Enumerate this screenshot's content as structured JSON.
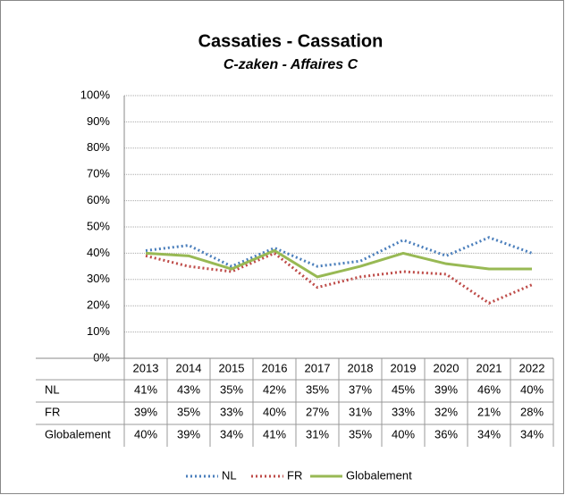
{
  "chart_data": {
    "type": "line",
    "title": "Cassaties - Cassation",
    "subtitle": "C-zaken - Affaires C",
    "categories": [
      "2013",
      "2014",
      "2015",
      "2016",
      "2017",
      "2018",
      "2019",
      "2020",
      "2021",
      "2022"
    ],
    "series": [
      {
        "name": "NL",
        "color": "#4a7ebb",
        "style": "dotted",
        "values": [
          41,
          43,
          35,
          42,
          35,
          37,
          45,
          39,
          46,
          40
        ],
        "value_labels": [
          "41%",
          "43%",
          "35%",
          "42%",
          "35%",
          "37%",
          "45%",
          "39%",
          "46%",
          "40%"
        ]
      },
      {
        "name": "FR",
        "color": "#be4b48",
        "style": "dotted",
        "values": [
          39,
          35,
          33,
          40,
          27,
          31,
          33,
          32,
          21,
          28
        ],
        "value_labels": [
          "39%",
          "35%",
          "33%",
          "40%",
          "27%",
          "31%",
          "33%",
          "32%",
          "21%",
          "28%"
        ]
      },
      {
        "name": "Globalement",
        "color": "#98b954",
        "style": "solid",
        "values": [
          40,
          39,
          34,
          41,
          31,
          35,
          40,
          36,
          34,
          34
        ],
        "value_labels": [
          "40%",
          "39%",
          "34%",
          "41%",
          "31%",
          "35%",
          "40%",
          "36%",
          "34%",
          "34%"
        ]
      }
    ],
    "ylim": [
      0,
      100
    ],
    "yticks": [
      {
        "value": 0,
        "label": "0%"
      },
      {
        "value": 10,
        "label": "10%"
      },
      {
        "value": 20,
        "label": "20%"
      },
      {
        "value": 30,
        "label": "30%"
      },
      {
        "value": 40,
        "label": "40%"
      },
      {
        "value": 50,
        "label": "50%"
      },
      {
        "value": 60,
        "label": "60%"
      },
      {
        "value": 70,
        "label": "70%"
      },
      {
        "value": 80,
        "label": "80%"
      },
      {
        "value": 90,
        "label": "90%"
      },
      {
        "value": 100,
        "label": "100%"
      }
    ],
    "grid": true,
    "legend": "bottom"
  }
}
